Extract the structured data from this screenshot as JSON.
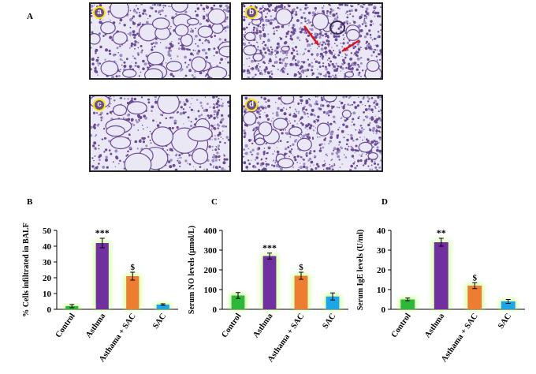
{
  "figure": {
    "panel_A_label": "A",
    "panel_B_label": "B",
    "panel_C_label": "C",
    "panel_D_label": "D",
    "micrographs": [
      {
        "label": "a"
      },
      {
        "label": "b"
      },
      {
        "label": "c"
      },
      {
        "label": "d"
      }
    ],
    "colors": {
      "tissue": "#6b4a94",
      "tissue_light": "#9c8cc6",
      "background": "#e9e8f4",
      "arrow": "#e0101a",
      "label_ring": "#ffe600"
    }
  },
  "chart_data": [
    {
      "type": "bar",
      "panel": "B",
      "categories": [
        "Control",
        "Asthma",
        "Asthama + SAC",
        "SAC"
      ],
      "values": [
        2,
        42,
        21,
        3
      ],
      "errors": [
        1,
        3,
        2.5,
        0.5
      ],
      "annotations": [
        "",
        "***",
        "$",
        ""
      ],
      "colors": [
        "#2db83c",
        "#7030a0",
        "#ed7d31",
        "#1ca6e8"
      ],
      "ylabel": "% Cells infiltrated in BALF",
      "ylim": [
        0,
        50
      ],
      "yticks": [
        0,
        10,
        20,
        30,
        40,
        50
      ],
      "grid": false
    },
    {
      "type": "bar",
      "panel": "C",
      "categories": [
        "Control",
        "Asthma",
        "Asthama + SAC",
        "SAC"
      ],
      "values": [
        70,
        270,
        170,
        65
      ],
      "errors": [
        15,
        15,
        18,
        18
      ],
      "annotations": [
        "",
        "***",
        "$",
        ""
      ],
      "colors": [
        "#2db83c",
        "#7030a0",
        "#ed7d31",
        "#1ca6e8"
      ],
      "ylabel": "Serum NO levels (µmol/L)",
      "ylim": [
        0,
        400
      ],
      "yticks": [
        0,
        100,
        200,
        300,
        400
      ],
      "grid": false
    },
    {
      "type": "bar",
      "panel": "D",
      "categories": [
        "Control",
        "Asthma",
        "Asthama + SAC",
        "SAC"
      ],
      "values": [
        5,
        34,
        12,
        4
      ],
      "errors": [
        0.7,
        2,
        1.5,
        1
      ],
      "annotations": [
        "",
        "**",
        "$",
        ""
      ],
      "colors": [
        "#2db83c",
        "#7030a0",
        "#ed7d31",
        "#1ca6e8"
      ],
      "ylabel": "Serum IgE levels (U/ml)",
      "ylim": [
        0,
        40
      ],
      "yticks": [
        0,
        10,
        20,
        30,
        40
      ],
      "grid": false
    }
  ]
}
